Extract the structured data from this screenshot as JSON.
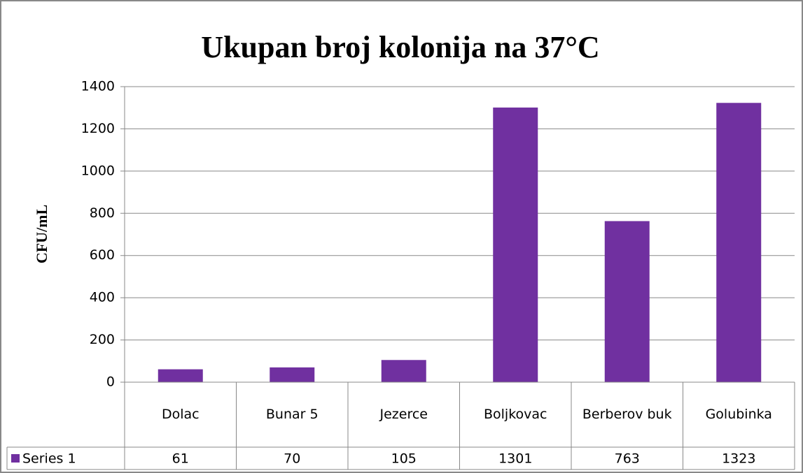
{
  "chart_data": {
    "type": "bar",
    "title": "Ukupan broj kolonija na 37°C",
    "y_label": "CFU/mL",
    "categories": [
      "Dolac",
      "Bunar 5",
      "Jezerce",
      "Boljkovac",
      "Berberov buk",
      "Golubinka"
    ],
    "series": [
      {
        "name": "Series 1",
        "color": "#7030a0",
        "values": [
          61,
          70,
          105,
          1301,
          763,
          1323
        ]
      }
    ],
    "ylim": [
      0,
      1400
    ],
    "yticks": [
      0,
      200,
      400,
      600,
      800,
      1000,
      1200,
      1400
    ],
    "grid": true,
    "data_table": true
  }
}
